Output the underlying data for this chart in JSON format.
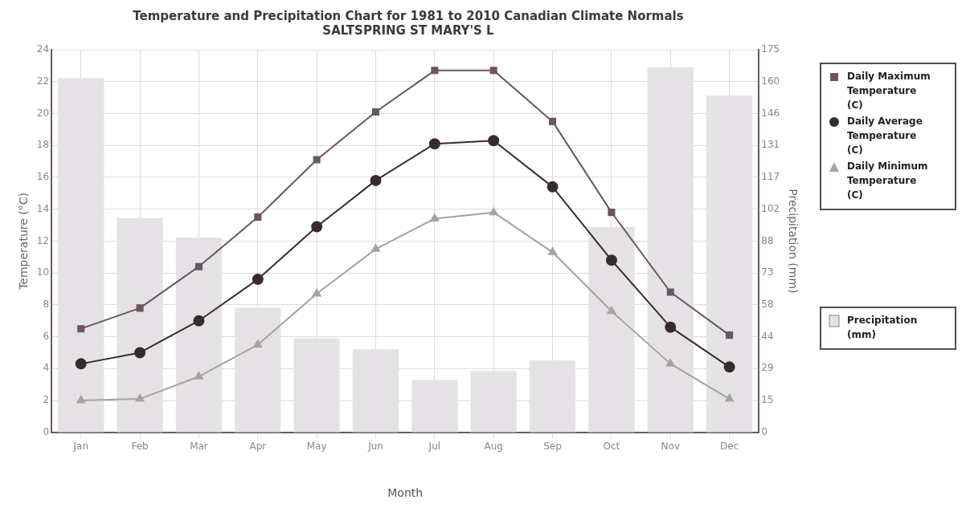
{
  "chart_data": {
    "type": "line",
    "title": "Temperature and Precipitation Chart for 1981 to 2010 Canadian Climate Normals",
    "subtitle": "SALTSPRING ST MARY'S L",
    "xlabel": "Month",
    "ylabel": "Temperature (°C)",
    "y2label": "Precipitation (mm)",
    "categories": [
      "Jan",
      "Feb",
      "Mar",
      "Apr",
      "May",
      "Jun",
      "Jul",
      "Aug",
      "Sep",
      "Oct",
      "Nov",
      "Dec"
    ],
    "series": [
      {
        "name": "Daily Maximum Temperature (C)",
        "color": "#6b5560",
        "marker": "square",
        "values": [
          6.5,
          7.8,
          10.4,
          13.5,
          17.1,
          20.1,
          22.7,
          22.7,
          19.5,
          13.8,
          8.8,
          6.1
        ]
      },
      {
        "name": "Daily Average Temperature (C)",
        "color": "#3a2a30",
        "marker": "circle",
        "values": [
          4.3,
          5.0,
          7.0,
          9.6,
          12.9,
          15.8,
          18.1,
          18.3,
          15.4,
          10.8,
          6.6,
          4.1
        ]
      },
      {
        "name": "Daily Minimum Temperature (C)",
        "color": "#a8a0a4",
        "marker": "triangle",
        "values": [
          2.0,
          2.1,
          3.5,
          5.5,
          8.7,
          11.5,
          13.4,
          13.8,
          11.3,
          7.6,
          4.3,
          2.1
        ]
      },
      {
        "name": "Precipitation (mm)",
        "type": "bar",
        "axis": "y2",
        "color": "#e4e2e4",
        "values": [
          162,
          98,
          89,
          57,
          43,
          38,
          24,
          28,
          33,
          94,
          167,
          154
        ]
      }
    ],
    "ylim": [
      0,
      24
    ],
    "yticks": [
      0,
      2,
      4,
      6,
      8,
      10,
      12,
      14,
      16,
      18,
      20,
      22,
      24
    ],
    "y2lim": [
      0,
      175
    ],
    "y2ticks": [
      0,
      {
        "value": 14.583,
        "label": "15"
      },
      {
        "value": 29.167,
        "label": "29"
      },
      {
        "value": 43.75,
        "label": "44"
      },
      {
        "value": 58.333,
        "label": "58"
      },
      {
        "value": 72.917,
        "label": "73"
      },
      {
        "value": 87.5,
        "label": "88"
      },
      {
        "value": 102.083,
        "label": "102"
      },
      {
        "value": 116.667,
        "label": "117"
      },
      {
        "value": 131.25,
        "label": "131"
      },
      {
        "value": 145.833,
        "label": "146"
      },
      {
        "value": 160.417,
        "label": "160"
      },
      175
    ],
    "grid": true,
    "legend": "right",
    "line_style": "solid"
  }
}
